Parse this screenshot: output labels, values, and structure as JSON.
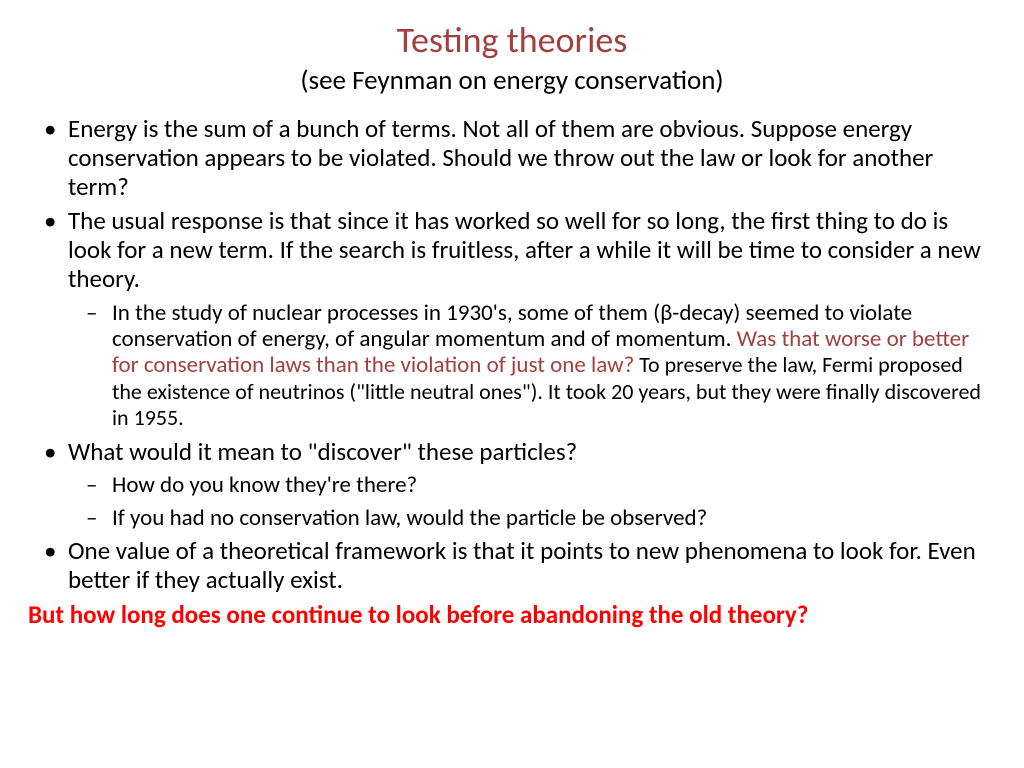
{
  "colors": {
    "title_color": "#a24040",
    "text_color": "#000000",
    "highlight_color": "#a24040",
    "closing_color": "#ff0000",
    "background": "#ffffff"
  },
  "typography": {
    "title_fontsize": 36,
    "subtitle_fontsize": 27,
    "bullet_fontsize": 25,
    "subbullet_fontsize": 23,
    "closing_fontsize": 25,
    "font_family": "Calibri"
  },
  "title": "Testing  theories",
  "subtitle": "(see Feynman on energy conservation)",
  "bullets": [
    {
      "text": "Energy is the sum of a bunch of terms.  Not all of them are obvious.  Suppose energy conservation appears to be violated.  Should we throw out the law or look for another term?"
    },
    {
      "text": "The usual response is that since it has worked so well for so long, the first thing to do is look for a new term.  If the search is fruitless, after a while it will be time to consider a new theory.",
      "sub": [
        {
          "pre": "In the study of nuclear processes in 1930's, some of them (",
          "symbol": "β",
          "mid": "-decay) seemed to violate conservation of energy, of angular momentum and of momentum. ",
          "highlight": "Was that worse or better for conservation laws than the violation of just one law?",
          "post": " To preserve the law, Fermi proposed the existence of neutrinos (\"little neutral ones\").  It took 20 years, but they were finally discovered in 1955."
        }
      ]
    },
    {
      "text": "What would it mean to \"discover\" these particles?",
      "sub": [
        {
          "text": "How do you know they're there?"
        },
        {
          "text": " If you had no conservation law, would the particle be observed?"
        }
      ]
    },
    {
      "text": "One value of a theoretical framework is that it points to new phenomena to look for. Even better if they actually exist."
    }
  ],
  "closing": "But how long does one continue to look before abandoning the old theory?"
}
